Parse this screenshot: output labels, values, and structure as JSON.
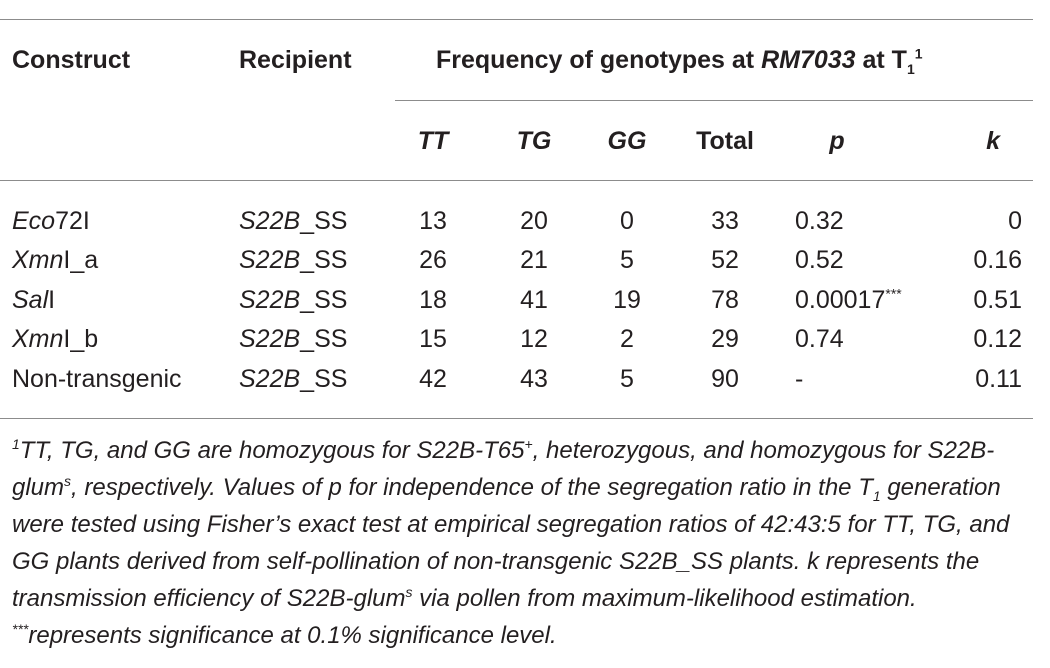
{
  "table": {
    "headers": {
      "construct": "Construct",
      "recipient": "Recipient",
      "frequency_pre": "Frequency of genotypes at ",
      "frequency_locus": "RM7033",
      "frequency_post": " at T",
      "frequency_sub": "1",
      "frequency_sup": "1",
      "tt": "TT",
      "tg": "TG",
      "gg": "GG",
      "total": "Total",
      "p": "p",
      "k": "k"
    },
    "rows": [
      {
        "construct_it": "Eco",
        "construct_rest": "72I",
        "recipient_it": "S22B",
        "recipient_rest": "_SS",
        "tt": "13",
        "tg": "20",
        "gg": "0",
        "total": "33",
        "p": "0.32",
        "p_sup": "",
        "k": "0"
      },
      {
        "construct_it": "Xmn",
        "construct_rest": "I_a",
        "recipient_it": "S22B",
        "recipient_rest": "_SS",
        "tt": "26",
        "tg": "21",
        "gg": "5",
        "total": "52",
        "p": "0.52",
        "p_sup": "",
        "k": "0.16"
      },
      {
        "construct_it": "Sal",
        "construct_rest": "I",
        "recipient_it": "S22B",
        "recipient_rest": "_SS",
        "tt": "18",
        "tg": "41",
        "gg": "19",
        "total": "78",
        "p": "0.00017",
        "p_sup": "***",
        "k": "0.51"
      },
      {
        "construct_it": "Xmn",
        "construct_rest": "I_b",
        "recipient_it": "S22B",
        "recipient_rest": "_SS",
        "tt": "15",
        "tg": "12",
        "gg": "2",
        "total": "29",
        "p": "0.74",
        "p_sup": "",
        "k": "0.12"
      },
      {
        "construct_it": "",
        "construct_rest": "Non-transgenic",
        "recipient_it": "S22B",
        "recipient_rest": "_SS",
        "tt": "42",
        "tg": "43",
        "gg": "5",
        "total": "90",
        "p": "-",
        "p_sup": "",
        "k": "0.11"
      }
    ]
  },
  "footnote": {
    "sup1": "1",
    "s1": "TT, TG, and GG are homozygous for S22B-T65",
    "sup_plus": "+",
    "s2": ", heterozygous, and homozygous for S22B-glum",
    "sup_s1": "s",
    "s3": ", respectively. Values of p for independence of the segregation ratio in the T",
    "sub1": "1",
    "s4": " generation were tested using Fisher’s exact test at empirical segregation ratios of 42:43:5 for TT, TG, and GG plants derived from self-pollination of non-transgenic S22B_SS plants. k represents the transmission efficiency of S22B-glum",
    "sup_s2": "s",
    "s5": " via pollen from maximum-likelihood estimation. ",
    "sup_stars": "***",
    "s6": "represents significance at 0.1% significance level."
  }
}
